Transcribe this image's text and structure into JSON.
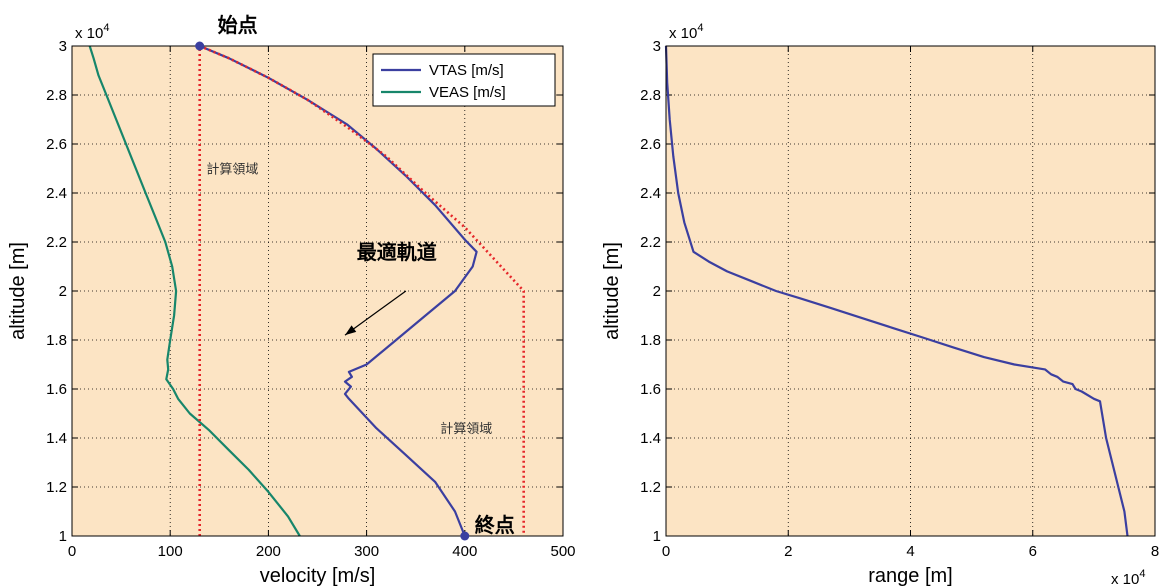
{
  "chart_data": [
    {
      "type": "line",
      "xlabel": "velocity [m/s]",
      "ylabel": "altitude [m]",
      "xlim": [
        0,
        500
      ],
      "ylim": [
        10000,
        30000
      ],
      "xticks": [
        0,
        100,
        200,
        300,
        400,
        500
      ],
      "xtick_labels": [
        "0",
        "100",
        "200",
        "300",
        "400",
        "500"
      ],
      "yticks": [
        10000,
        12000,
        14000,
        16000,
        18000,
        20000,
        22000,
        24000,
        26000,
        28000,
        30000
      ],
      "ytick_labels": [
        "1",
        "1.2",
        "1.4",
        "1.6",
        "1.8",
        "2",
        "2.2",
        "2.4",
        "2.6",
        "2.8",
        "3"
      ],
      "y_multiplier": "x 10",
      "y_multiplier_exp": "4",
      "grid": true,
      "background": "#FCE4C4",
      "legend_position": "top-right",
      "series": [
        {
          "name": "VTAS [m/s]",
          "color": "#3B3FA0",
          "x": [
            130,
            160,
            200,
            240,
            280,
            310,
            340,
            370,
            400,
            412,
            408,
            390,
            360,
            330,
            300,
            282,
            285,
            278,
            284,
            278,
            282,
            310,
            340,
            370,
            390,
            400
          ],
          "y": [
            30000,
            29500,
            28700,
            27800,
            26800,
            25800,
            24700,
            23500,
            22100,
            21600,
            21000,
            20000,
            19000,
            18000,
            17000,
            16700,
            16500,
            16300,
            16100,
            15800,
            15600,
            14400,
            13300,
            12200,
            11000,
            10000
          ]
        },
        {
          "name": "VEAS [m/s]",
          "color": "#17866B",
          "x": [
            18,
            22,
            27,
            35,
            45,
            55,
            65,
            75,
            85,
            95,
            102,
            106,
            104,
            100,
            97,
            98,
            96,
            103,
            108,
            120,
            140,
            160,
            180,
            200,
            220,
            232
          ],
          "y": [
            30000,
            29500,
            28800,
            28000,
            27000,
            26000,
            25000,
            24000,
            23000,
            22000,
            21000,
            20000,
            19000,
            18000,
            17200,
            16800,
            16400,
            16000,
            15600,
            15000,
            14300,
            13500,
            12700,
            11800,
            10800,
            10000
          ]
        },
        {
          "name": "",
          "style": "dotted",
          "color": "#E5262A",
          "x": [
            130,
            130,
            160,
            200,
            240,
            280,
            320,
            360,
            400,
            430,
            460,
            460
          ],
          "y": [
            10000,
            30000,
            29500,
            28700,
            27800,
            26700,
            25500,
            24000,
            22600,
            21300,
            20000,
            10000
          ]
        }
      ],
      "annotations": [
        {
          "text": "始点",
          "x": 130,
          "y": 30000,
          "style": "big"
        },
        {
          "text": "終点",
          "x": 400,
          "y": 10000,
          "style": "big"
        },
        {
          "text": "計算領域",
          "x": 145,
          "y": 24800,
          "style": "small"
        },
        {
          "text": "計算領域",
          "x": 375,
          "y": 14200,
          "style": "small"
        },
        {
          "text": "最適軌道",
          "x": 290,
          "y": 21300,
          "style": "big"
        }
      ],
      "markers": [
        {
          "label": "start",
          "x": 130,
          "y": 30000
        },
        {
          "label": "end",
          "x": 400,
          "y": 10000
        }
      ],
      "arrow": {
        "from": [
          340,
          20000
        ],
        "to": [
          278,
          18200
        ]
      }
    },
    {
      "type": "line",
      "xlabel": "range [m]",
      "ylabel": "altitude [m]",
      "xlim": [
        0,
        80000
      ],
      "ylim": [
        10000,
        30000
      ],
      "xticks": [
        0,
        20000,
        40000,
        60000,
        80000
      ],
      "xtick_labels": [
        "0",
        "2",
        "4",
        "6",
        "8"
      ],
      "x_multiplier": "x 10",
      "x_multiplier_exp": "4",
      "yticks": [
        10000,
        12000,
        14000,
        16000,
        18000,
        20000,
        22000,
        24000,
        26000,
        28000,
        30000
      ],
      "ytick_labels": [
        "1",
        "1.2",
        "1.4",
        "1.6",
        "1.8",
        "2",
        "2.2",
        "2.4",
        "2.6",
        "2.8",
        "3"
      ],
      "y_multiplier": "x 10",
      "y_multiplier_exp": "4",
      "grid": true,
      "background": "#FCE4C4",
      "series": [
        {
          "name": "",
          "color": "#3B3FA0",
          "x": [
            0,
            200,
            600,
            1200,
            2000,
            3000,
            4500,
            7000,
            10000,
            14000,
            18000,
            22000,
            27000,
            32000,
            37000,
            42000,
            47000,
            52000,
            57000,
            62000,
            63000,
            64000,
            65000,
            66500,
            67000,
            68000,
            70000,
            71000,
            72000,
            73000,
            74000,
            75000,
            75500
          ],
          "y": [
            30000,
            28500,
            27000,
            25500,
            24000,
            22800,
            21600,
            21200,
            20800,
            20400,
            20000,
            19700,
            19300,
            18900,
            18500,
            18100,
            17700,
            17300,
            17000,
            16800,
            16600,
            16500,
            16300,
            16200,
            16000,
            15900,
            15600,
            15500,
            14000,
            13000,
            12000,
            11000,
            10000
          ]
        }
      ]
    }
  ]
}
